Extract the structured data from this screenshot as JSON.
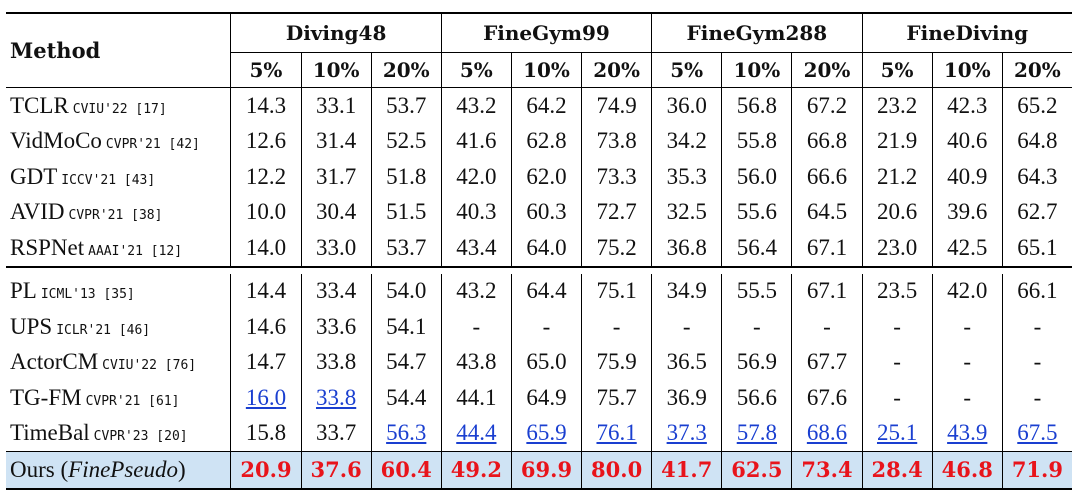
{
  "header": {
    "method": "Method",
    "groups": [
      "Diving48",
      "FineGym99",
      "FineGym288",
      "FineDiving"
    ],
    "splits": [
      "5%",
      "10%",
      "20%"
    ]
  },
  "rows_top": [
    {
      "name": "TCLR",
      "venue": "CVIU'22 [17]",
      "values": [
        "14.3",
        "33.1",
        "53.7",
        "43.2",
        "64.2",
        "74.9",
        "36.0",
        "56.8",
        "67.2",
        "23.2",
        "42.3",
        "65.2"
      ]
    },
    {
      "name": "VidMoCo",
      "venue": "CVPR'21 [42]",
      "values": [
        "12.6",
        "31.4",
        "52.5",
        "41.6",
        "62.8",
        "73.8",
        "34.2",
        "55.8",
        "66.8",
        "21.9",
        "40.6",
        "64.8"
      ]
    },
    {
      "name": "GDT",
      "venue": "ICCV'21 [43]",
      "values": [
        "12.2",
        "31.7",
        "51.8",
        "42.0",
        "62.0",
        "73.3",
        "35.3",
        "56.0",
        "66.6",
        "21.2",
        "40.9",
        "64.3"
      ]
    },
    {
      "name": "AVID",
      "venue": "CVPR'21 [38]",
      "values": [
        "10.0",
        "30.4",
        "51.5",
        "40.3",
        "60.3",
        "72.7",
        "32.5",
        "55.6",
        "64.5",
        "20.6",
        "39.6",
        "62.7"
      ]
    },
    {
      "name": "RSPNet",
      "venue": "AAAI'21 [12]",
      "values": [
        "14.0",
        "33.0",
        "53.7",
        "43.4",
        "64.0",
        "75.2",
        "36.8",
        "56.4",
        "67.1",
        "23.0",
        "42.5",
        "65.1"
      ]
    }
  ],
  "rows_bottom": [
    {
      "name": "PL",
      "venue": "ICML'13 [35]",
      "values": [
        "14.4",
        "33.4",
        "54.0",
        "43.2",
        "64.4",
        "75.1",
        "34.9",
        "55.5",
        "67.1",
        "23.5",
        "42.0",
        "66.1"
      ]
    },
    {
      "name": "UPS",
      "venue": "ICLR'21 [46]",
      "values": [
        "14.6",
        "33.6",
        "54.1",
        "-",
        "-",
        "-",
        "-",
        "-",
        "-",
        "-",
        "-",
        "-"
      ]
    },
    {
      "name": "ActorCM",
      "venue": "CVIU'22 [76]",
      "values": [
        "14.7",
        "33.8",
        "54.7",
        "43.8",
        "65.0",
        "75.9",
        "36.5",
        "56.9",
        "67.7",
        "-",
        "-",
        "-"
      ]
    },
    {
      "name": "TG-FM",
      "venue": "CVPR'21 [61]",
      "values": [
        "16.0",
        "33.8",
        "54.4",
        "44.1",
        "64.9",
        "75.7",
        "36.9",
        "56.6",
        "67.6",
        "-",
        "-",
        "-"
      ],
      "second": [
        0,
        1
      ]
    },
    {
      "name": "TimeBal",
      "venue": "CVPR'23 [20]",
      "values": [
        "15.8",
        "33.7",
        "56.3",
        "44.4",
        "65.9",
        "76.1",
        "37.3",
        "57.8",
        "68.6",
        "25.1",
        "43.9",
        "67.5"
      ],
      "second": [
        2,
        3,
        4,
        5,
        6,
        7,
        8,
        9,
        10,
        11
      ]
    }
  ],
  "ours": {
    "name_prefix": "Ours (",
    "name_italic": "FinePseudo",
    "name_suffix": ")",
    "values": [
      "20.9",
      "37.6",
      "60.4",
      "49.2",
      "69.9",
      "80.0",
      "41.7",
      "62.5",
      "73.4",
      "28.4",
      "46.8",
      "71.9"
    ]
  },
  "colors": {
    "best": "#e8141b",
    "second": "#1a3fd0",
    "ours_row": "#cfe3f4"
  }
}
